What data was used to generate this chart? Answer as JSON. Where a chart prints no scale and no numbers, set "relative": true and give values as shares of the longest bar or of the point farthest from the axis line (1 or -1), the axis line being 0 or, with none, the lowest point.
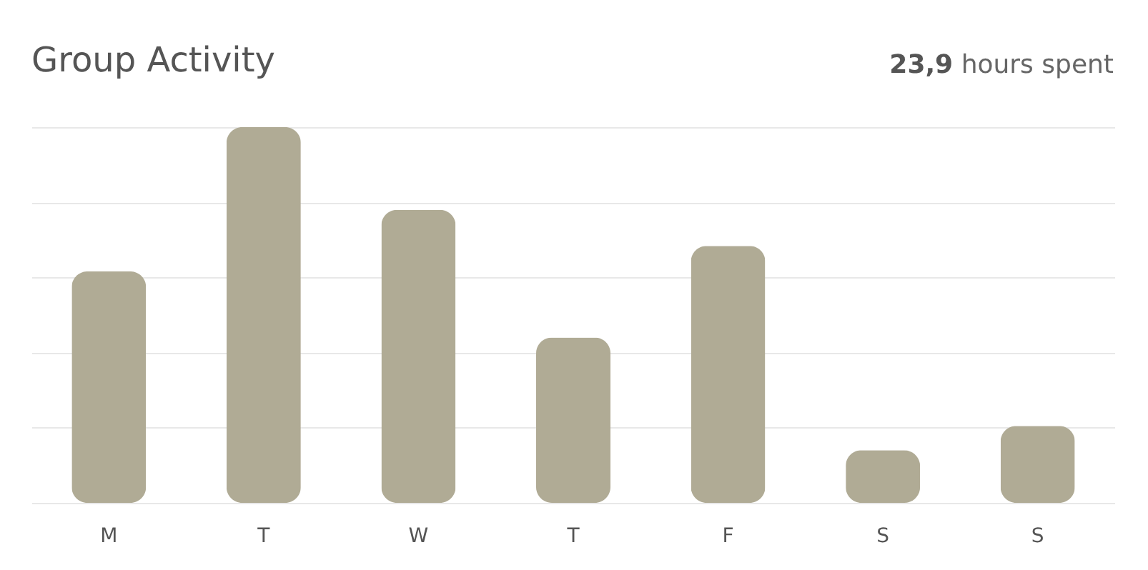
{
  "chart_data": {
    "type": "bar",
    "title": "Group Activity",
    "subtitle": "23,9 hours spent",
    "relative": true,
    "grid": true,
    "categories": [
      "M",
      "T",
      "W",
      "T",
      "F",
      "S",
      "S"
    ],
    "values": [
      0.616,
      1,
      0.78,
      0.44,
      0.684,
      0.14,
      0.205
    ],
    "color": "#b0ab95"
  }
}
